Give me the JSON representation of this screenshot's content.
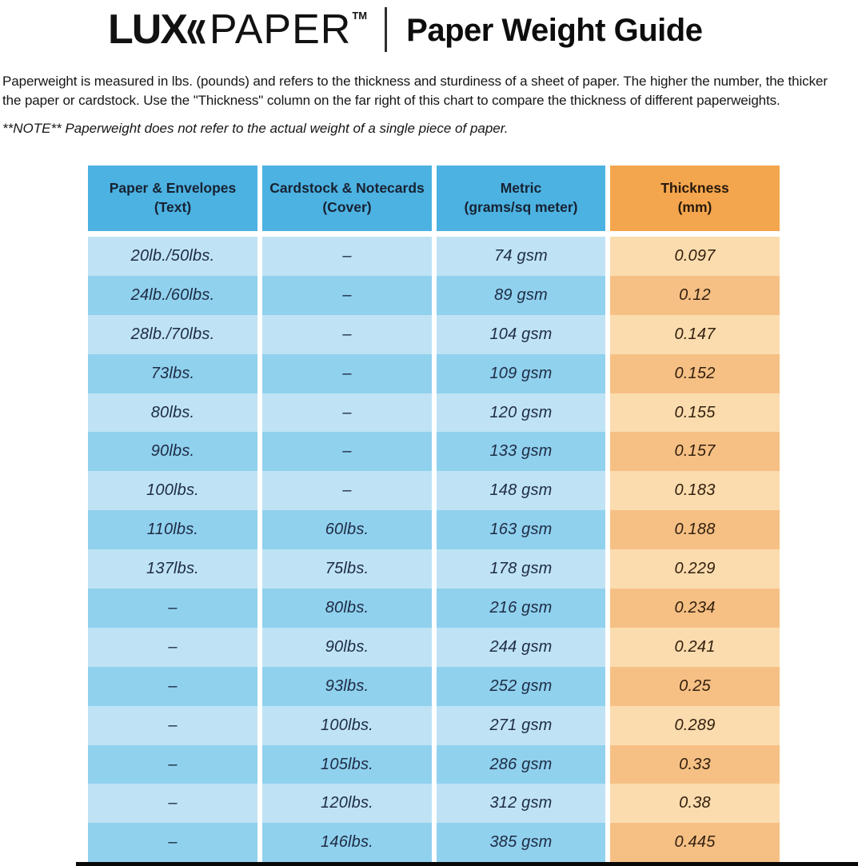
{
  "palette": {
    "header_blue": "#4cb2e2",
    "header_orange": "#f4a64e",
    "row_blue_light": "#bfe3f4",
    "row_blue_dark": "#90d1ee",
    "row_orange_light": "#fbdcae",
    "row_orange_dark": "#f6c085",
    "header_text": "#172232",
    "cell_text_blue": "#1e2c44",
    "cell_text_orange": "#33200e"
  },
  "brand": {
    "lux": "LUX",
    "chevrons": "«",
    "paper": "PAPER",
    "tm": "TM",
    "title": "Paper Weight Guide"
  },
  "intro": {
    "line1": "Paperweight is measured in lbs. (pounds) and refers to the thickness and sturdiness of a sheet of paper. The higher the number, the thicker",
    "line2": "the paper or cardstock. Use the \"Thickness\" column on the far right of this chart to compare the thickness of different paperweights.",
    "note": "**NOTE** Paperweight does not refer to the actual weight of a single piece of paper."
  },
  "table": {
    "headers": [
      {
        "line1": "Paper & Envelopes",
        "line2": "(Text)",
        "variant": "blue"
      },
      {
        "line1": "Cardstock & Notecards",
        "line2": "(Cover)",
        "variant": "blue"
      },
      {
        "line1": "Metric",
        "line2": "(grams/sq meter)",
        "variant": "blue"
      },
      {
        "line1": "Thickness",
        "line2": "(mm)",
        "variant": "orange"
      }
    ],
    "rows": [
      [
        "20lb./50lbs.",
        "–",
        "74 gsm",
        "0.097"
      ],
      [
        "24lb./60lbs.",
        "–",
        "89 gsm",
        "0.12"
      ],
      [
        "28lb./70lbs.",
        "–",
        "104 gsm",
        "0.147"
      ],
      [
        "73lbs.",
        "–",
        "109 gsm",
        "0.152"
      ],
      [
        "80lbs.",
        "–",
        "120 gsm",
        "0.155"
      ],
      [
        "90lbs.",
        "–",
        "133 gsm",
        "0.157"
      ],
      [
        "100lbs.",
        "–",
        "148 gsm",
        "0.183"
      ],
      [
        "110lbs.",
        "60lbs.",
        "163 gsm",
        "0.188"
      ],
      [
        "137lbs.",
        "75lbs.",
        "178 gsm",
        "0.229"
      ],
      [
        "–",
        "80lbs.",
        "216 gsm",
        "0.234"
      ],
      [
        "–",
        "90lbs.",
        "244 gsm",
        "0.241"
      ],
      [
        "–",
        "93lbs.",
        "252 gsm",
        "0.25"
      ],
      [
        "–",
        "100lbs.",
        "271 gsm",
        "0.289"
      ],
      [
        "–",
        "105lbs.",
        "286 gsm",
        "0.33"
      ],
      [
        "–",
        "120lbs.",
        "312 gsm",
        "0.38"
      ],
      [
        "–",
        "146lbs.",
        "385 gsm",
        "0.445"
      ]
    ]
  },
  "chart_data": {
    "type": "table",
    "title": "Paper Weight Guide",
    "columns": [
      "Paper & Envelopes (Text)",
      "Cardstock & Notecards (Cover)",
      "Metric (grams/sq meter)",
      "Thickness (mm)"
    ],
    "rows": [
      {
        "paper_envelopes_text": "20lb./50lbs.",
        "cardstock_notecards_cover": null,
        "metric_gsm": 74,
        "thickness_mm": 0.097
      },
      {
        "paper_envelopes_text": "24lb./60lbs.",
        "cardstock_notecards_cover": null,
        "metric_gsm": 89,
        "thickness_mm": 0.12
      },
      {
        "paper_envelopes_text": "28lb./70lbs.",
        "cardstock_notecards_cover": null,
        "metric_gsm": 104,
        "thickness_mm": 0.147
      },
      {
        "paper_envelopes_text": "73lbs.",
        "cardstock_notecards_cover": null,
        "metric_gsm": 109,
        "thickness_mm": 0.152
      },
      {
        "paper_envelopes_text": "80lbs.",
        "cardstock_notecards_cover": null,
        "metric_gsm": 120,
        "thickness_mm": 0.155
      },
      {
        "paper_envelopes_text": "90lbs.",
        "cardstock_notecards_cover": null,
        "metric_gsm": 133,
        "thickness_mm": 0.157
      },
      {
        "paper_envelopes_text": "100lbs.",
        "cardstock_notecards_cover": null,
        "metric_gsm": 148,
        "thickness_mm": 0.183
      },
      {
        "paper_envelopes_text": "110lbs.",
        "cardstock_notecards_cover": "60lbs.",
        "metric_gsm": 163,
        "thickness_mm": 0.188
      },
      {
        "paper_envelopes_text": "137lbs.",
        "cardstock_notecards_cover": "75lbs.",
        "metric_gsm": 178,
        "thickness_mm": 0.229
      },
      {
        "paper_envelopes_text": null,
        "cardstock_notecards_cover": "80lbs.",
        "metric_gsm": 216,
        "thickness_mm": 0.234
      },
      {
        "paper_envelopes_text": null,
        "cardstock_notecards_cover": "90lbs.",
        "metric_gsm": 244,
        "thickness_mm": 0.241
      },
      {
        "paper_envelopes_text": null,
        "cardstock_notecards_cover": "93lbs.",
        "metric_gsm": 252,
        "thickness_mm": 0.25
      },
      {
        "paper_envelopes_text": null,
        "cardstock_notecards_cover": "100lbs.",
        "metric_gsm": 271,
        "thickness_mm": 0.289
      },
      {
        "paper_envelopes_text": null,
        "cardstock_notecards_cover": "105lbs.",
        "metric_gsm": 286,
        "thickness_mm": 0.33
      },
      {
        "paper_envelopes_text": null,
        "cardstock_notecards_cover": "120lbs.",
        "metric_gsm": 312,
        "thickness_mm": 0.38
      },
      {
        "paper_envelopes_text": null,
        "cardstock_notecards_cover": "146lbs.",
        "metric_gsm": 385,
        "thickness_mm": 0.445
      }
    ],
    "layout": {
      "row_striping": "alternating light/dark",
      "thickness_column_color": "orange",
      "other_columns_color": "blue"
    }
  }
}
